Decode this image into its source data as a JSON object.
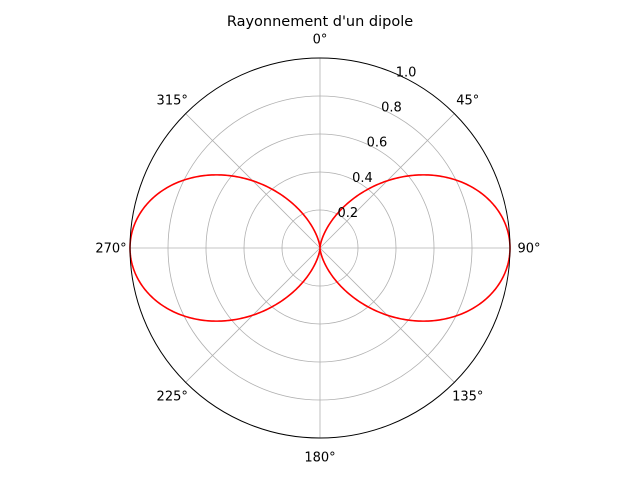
{
  "chart_data": {
    "type": "polar-line",
    "title": "Rayonnement d'un dipole",
    "theta_zero_location": "N",
    "theta_direction": "clockwise",
    "theta_tick_labels": [
      "0°",
      "45°",
      "90°",
      "135°",
      "180°",
      "225°",
      "270°",
      "315°"
    ],
    "r_tick_labels": [
      "0.2",
      "0.4",
      "0.6",
      "0.8",
      "1.0"
    ],
    "r_ticks": [
      0.2,
      0.4,
      0.6,
      0.8,
      1.0
    ],
    "rlim": [
      0,
      1.0
    ],
    "grid": true,
    "series": [
      {
        "function": "r = sin(theta)^2",
        "color": "#ff0000",
        "theta_deg": [
          0,
          15,
          30,
          45,
          60,
          75,
          90,
          105,
          120,
          135,
          150,
          165,
          180,
          195,
          210,
          225,
          240,
          255,
          270,
          285,
          300,
          315,
          330,
          345,
          360
        ],
        "r": [
          0.0,
          0.067,
          0.25,
          0.5,
          0.75,
          0.933,
          1.0,
          0.933,
          0.75,
          0.5,
          0.25,
          0.067,
          0.0,
          0.067,
          0.25,
          0.5,
          0.75,
          0.933,
          1.0,
          0.933,
          0.75,
          0.5,
          0.25,
          0.067,
          0.0
        ]
      }
    ]
  }
}
